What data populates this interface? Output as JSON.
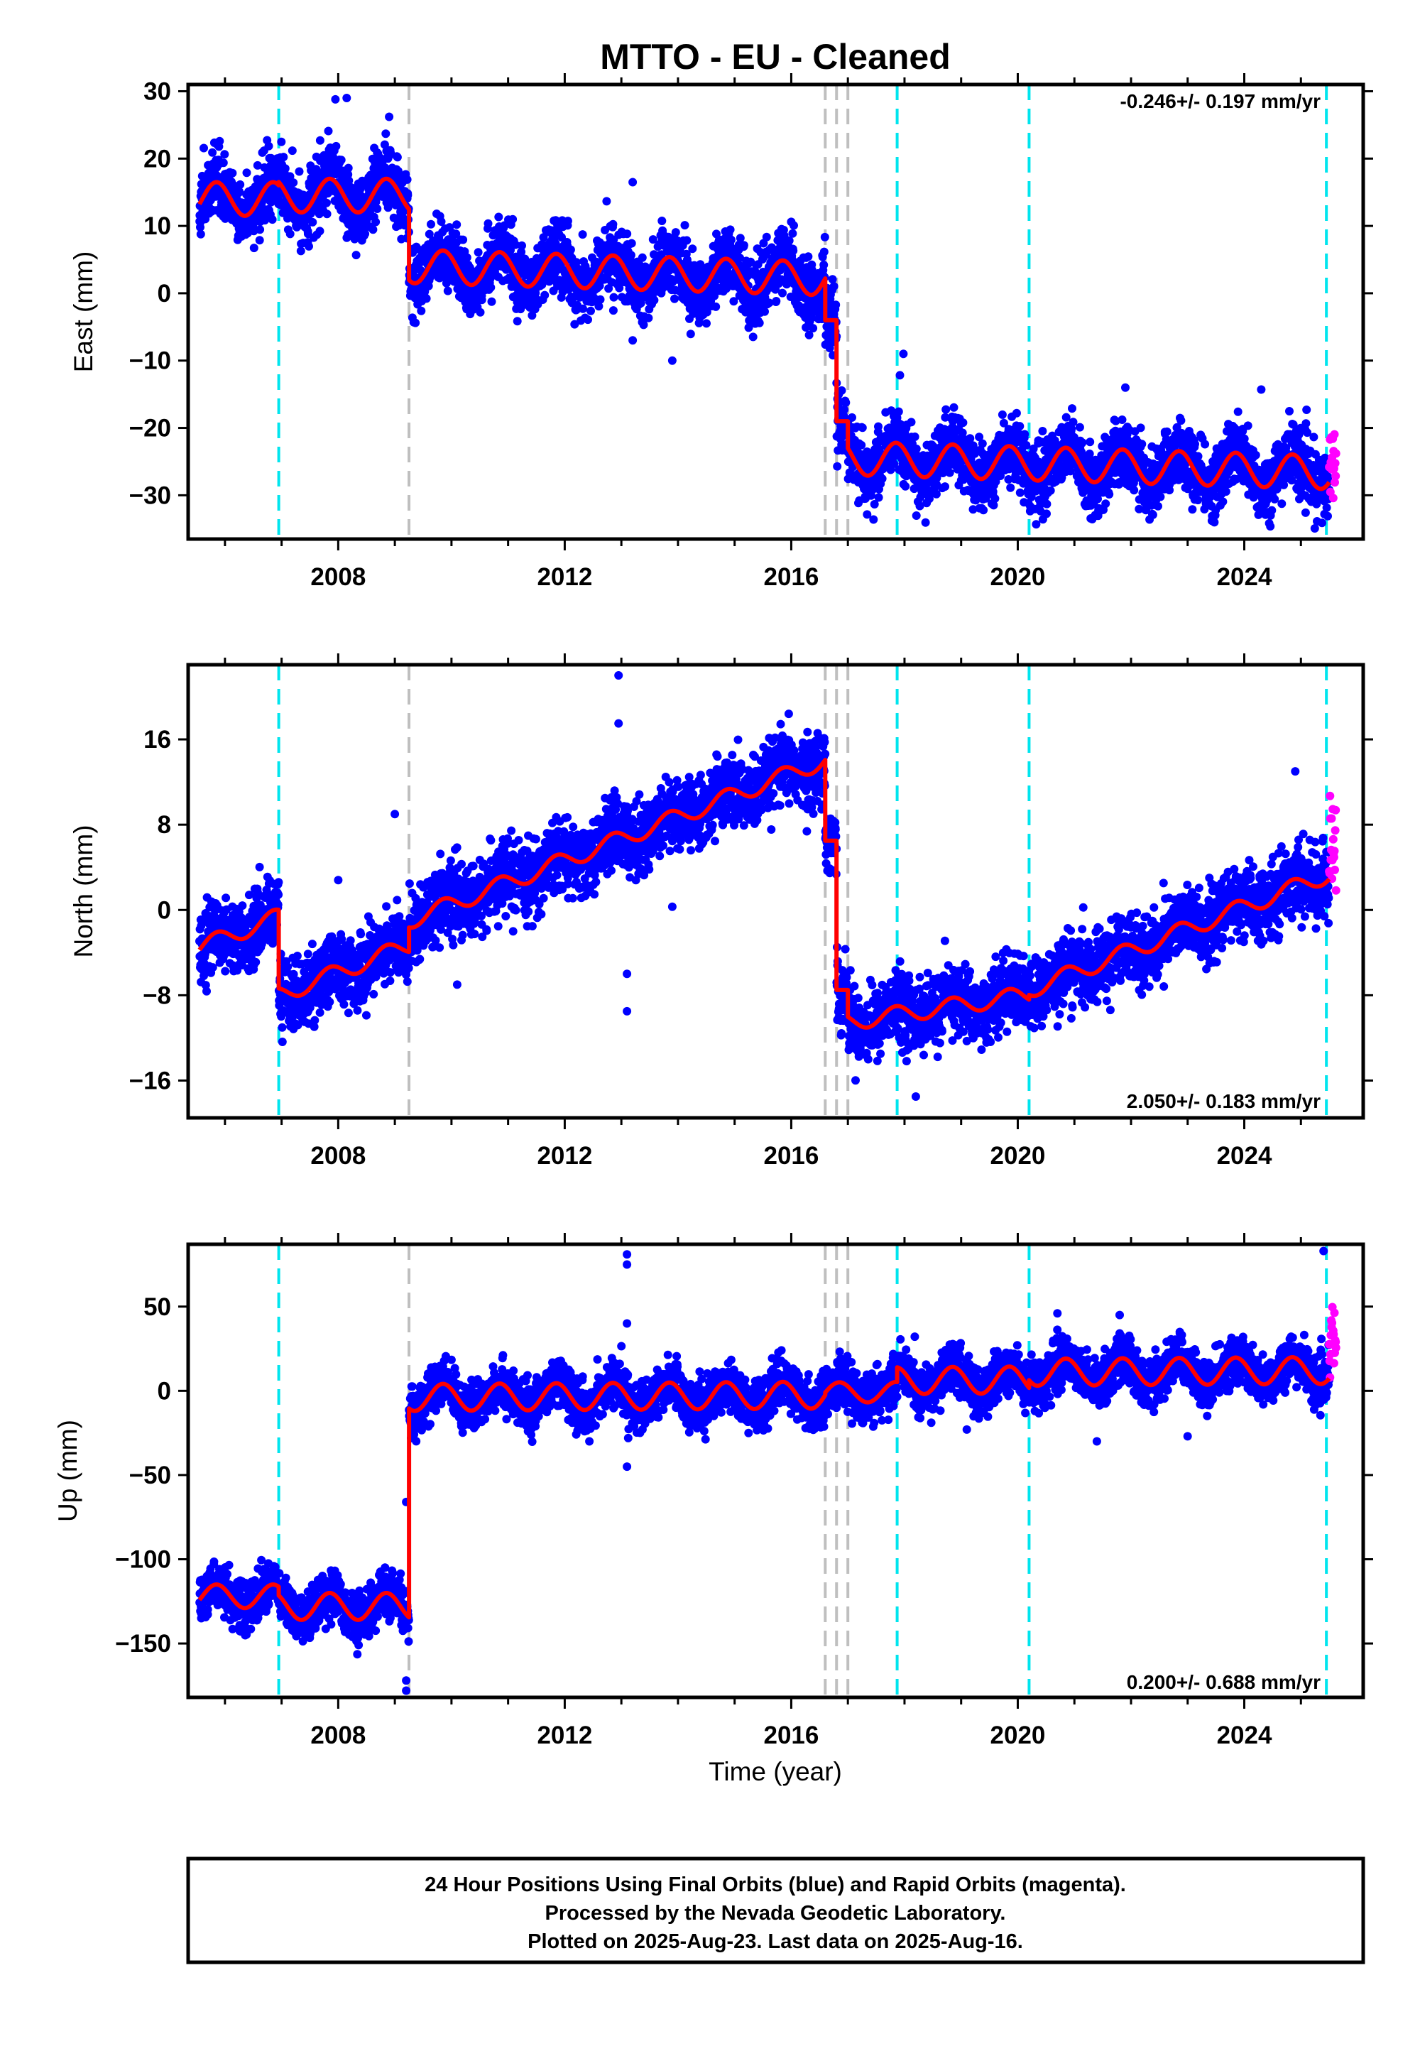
{
  "title": "MTTO  - EU - Cleaned",
  "xlabel": "Time (year)",
  "x_ticks": [
    "2008",
    "2012",
    "2016",
    "2020",
    "2024"
  ],
  "colors": {
    "final_orbits": "#0000ff",
    "rapid_orbits": "#ff00ff",
    "model": "#ff0000",
    "antenna_change": "#00e5ee",
    "equipment_change": "#bfbfbf"
  },
  "footer": {
    "line1": "24 Hour Positions Using Final Orbits (blue) and Rapid Orbits (magenta).",
    "line2": "Processed by the Nevada Geodetic Laboratory.",
    "line3": "Plotted on 2025-Aug-23. Last data on 2025-Aug-16."
  },
  "chart_data": [
    {
      "type": "scatter",
      "component": "East",
      "ylabel": "East (mm)",
      "ylim": [
        -36.5,
        31
      ],
      "xlim": [
        2005.35,
        2026.1
      ],
      "y_ticks": [
        30,
        20,
        10,
        0,
        -10,
        -20,
        -30
      ],
      "y_tick_labels": [
        "30",
        "20",
        "10",
        "0",
        "−10",
        "−20",
        "−30"
      ],
      "rate": "-0.246+/- 0.197 mm/yr",
      "rate_position": "top-right",
      "antenna_offsets": [
        2006.95,
        2017.87,
        2020.2,
        2025.45
      ],
      "equipment_offsets": [
        2009.25,
        2016.6,
        2016.8,
        2017.0
      ],
      "model_segments": [
        {
          "start": 2005.55,
          "end": 2006.95,
          "level": 14.0,
          "trend": 0.0,
          "amp": 2.5
        },
        {
          "start": 2006.95,
          "end": 2009.25,
          "level": 14.5,
          "trend": 0.0,
          "amp": 2.5
        },
        {
          "start": 2009.25,
          "end": 2016.6,
          "level": 4.0,
          "trend": -0.246,
          "amp": 2.5
        },
        {
          "start": 2016.6,
          "end": 2016.8,
          "level": -4.0,
          "trend": 0.0,
          "amp": 0.0
        },
        {
          "start": 2016.8,
          "end": 2017.0,
          "level": -19.0,
          "trend": 0.0,
          "amp": 0.0
        },
        {
          "start": 2017.0,
          "end": 2025.5,
          "level": -24.5,
          "trend": -0.246,
          "amp": 2.5
        }
      ],
      "scatter_spread": 2.4,
      "rapid_points": {
        "start": 2025.5,
        "end": 2025.62,
        "level": -25.0,
        "spread": 2.5
      },
      "outliers": [
        [
          2007.95,
          28.8
        ],
        [
          2008.15,
          29.0
        ],
        [
          2008.9,
          26.2
        ],
        [
          2013.2,
          16.5
        ],
        [
          2016.0,
          10.6
        ],
        [
          2013.2,
          -7.0
        ],
        [
          2013.9,
          -10.0
        ],
        [
          2017.98,
          -9.0
        ],
        [
          2021.9,
          -14.0
        ],
        [
          2024.3,
          -14.3
        ]
      ]
    },
    {
      "type": "scatter",
      "component": "North",
      "ylabel": "North (mm)",
      "ylim": [
        -19.5,
        23
      ],
      "xlim": [
        2005.35,
        2026.1
      ],
      "y_ticks": [
        16,
        8,
        0,
        -8,
        -16
      ],
      "y_tick_labels": [
        "16",
        "8",
        "0",
        "−8",
        "−16"
      ],
      "rate": "2.050+/- 0.183 mm/yr",
      "rate_position": "bottom-right",
      "antenna_offsets": [
        2006.95,
        2017.87,
        2020.2,
        2025.45
      ],
      "equipment_offsets": [
        2009.25,
        2016.6,
        2016.8,
        2017.0
      ],
      "model_segments": [
        {
          "start": 2005.55,
          "end": 2006.95,
          "level": -3.5,
          "trend": 2.05,
          "amp": 0.8
        },
        {
          "start": 2006.95,
          "end": 2009.25,
          "level": -8.0,
          "trend": 2.05,
          "amp": 0.8
        },
        {
          "start": 2009.25,
          "end": 2016.6,
          "level": -1.0,
          "trend": 2.05,
          "amp": 0.8
        },
        {
          "start": 2016.6,
          "end": 2016.8,
          "level": 6.5,
          "trend": 0.0,
          "amp": 0.0
        },
        {
          "start": 2016.8,
          "end": 2017.0,
          "level": -7.5,
          "trend": 0.0,
          "amp": 0.0
        },
        {
          "start": 2017.0,
          "end": 2020.2,
          "level": -10.5,
          "trend": 0.8,
          "amp": 0.8
        },
        {
          "start": 2020.2,
          "end": 2025.5,
          "level": -7.5,
          "trend": 2.05,
          "amp": 0.8
        }
      ],
      "scatter_spread": 1.6,
      "rapid_points": {
        "start": 2025.5,
        "end": 2025.62,
        "level": 6.0,
        "spread": 2.5
      },
      "outliers": [
        [
          2012.95,
          22.0
        ],
        [
          2012.95,
          17.5
        ],
        [
          2013.1,
          -9.5
        ],
        [
          2013.1,
          -6.0
        ],
        [
          2008.0,
          2.8
        ],
        [
          2009.0,
          9.0
        ],
        [
          2010.1,
          -7.0
        ],
        [
          2013.9,
          0.3
        ],
        [
          2018.2,
          -17.5
        ],
        [
          2024.9,
          13.0
        ]
      ]
    },
    {
      "type": "scatter",
      "component": "Up",
      "ylabel": "Up (mm)",
      "ylim": [
        -182,
        87
      ],
      "xlim": [
        2005.35,
        2026.1
      ],
      "y_ticks": [
        50,
        0,
        -50,
        -100,
        -150
      ],
      "y_tick_labels": [
        "50",
        "0",
        "−50",
        "−100",
        "−150"
      ],
      "rate": "0.200+/- 0.688 mm/yr",
      "rate_position": "bottom-right",
      "antenna_offsets": [
        2006.95,
        2017.87,
        2020.2,
        2025.45
      ],
      "equipment_offsets": [
        2009.25,
        2016.6,
        2016.8,
        2017.0
      ],
      "model_segments": [
        {
          "start": 2005.55,
          "end": 2006.95,
          "level": -122,
          "trend": 0.0,
          "amp": 7
        },
        {
          "start": 2006.95,
          "end": 2009.25,
          "level": -128,
          "trend": 0.0,
          "amp": 8
        },
        {
          "start": 2009.25,
          "end": 2016.6,
          "level": -4,
          "trend": 0.2,
          "amp": 8
        },
        {
          "start": 2016.6,
          "end": 2017.87,
          "level": -1,
          "trend": 0.2,
          "amp": 6
        },
        {
          "start": 2017.87,
          "end": 2020.2,
          "level": 6,
          "trend": 0.2,
          "amp": 8
        },
        {
          "start": 2020.2,
          "end": 2025.5,
          "level": 11,
          "trend": 0.2,
          "amp": 8
        }
      ],
      "scatter_spread": 7,
      "rapid_points": {
        "start": 2025.5,
        "end": 2025.62,
        "level": 32,
        "spread": 9
      },
      "outliers": [
        [
          2013.1,
          81
        ],
        [
          2013.1,
          75
        ],
        [
          2013.1,
          40
        ],
        [
          2013.1,
          -45
        ],
        [
          2009.2,
          -178
        ],
        [
          2009.2,
          -172
        ],
        [
          2009.2,
          -66
        ],
        [
          2021.8,
          45
        ],
        [
          2020.7,
          46
        ],
        [
          2025.4,
          83
        ],
        [
          2019.1,
          -23
        ],
        [
          2023.0,
          -27
        ]
      ]
    }
  ]
}
